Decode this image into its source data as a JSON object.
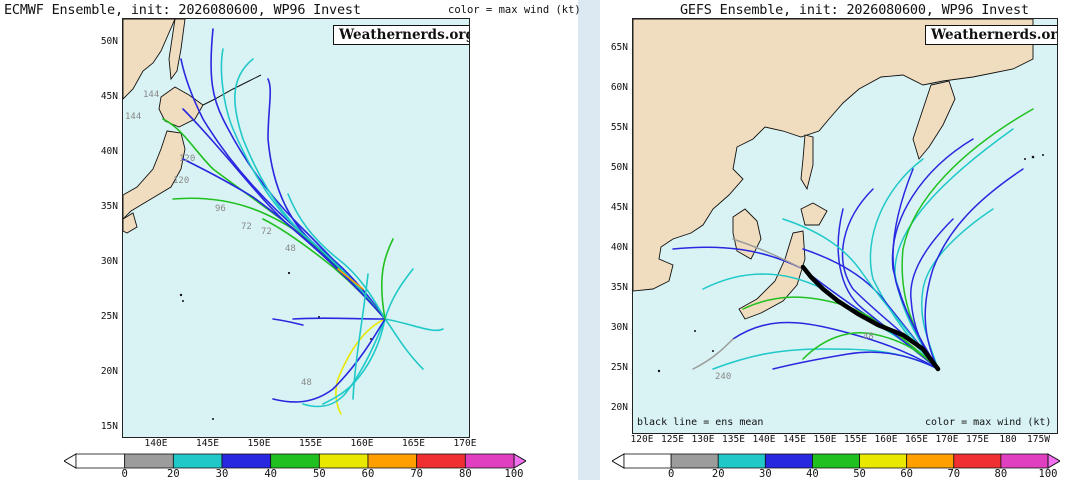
{
  "left": {
    "title": "ECMWF Ensemble, init: 2026080600, WP96 Invest",
    "legend_note": "color = max wind (kt)",
    "brand": "Weathernerds.org",
    "lat_labels": [
      "50N",
      "45N",
      "40N",
      "35N",
      "30N",
      "25N",
      "20N",
      "15N"
    ],
    "lon_labels": [
      "140E",
      "145E",
      "150E",
      "155E",
      "160E",
      "165E",
      "170E"
    ],
    "map_annotations": [
      "144",
      "144",
      "120",
      "120",
      "96",
      "72",
      "72",
      "48",
      "48"
    ],
    "colorbar_labels": [
      "0",
      "20",
      "30",
      "40",
      "50",
      "60",
      "70",
      "80",
      "100"
    ]
  },
  "right": {
    "title": "GEFS Ensemble, init: 2026080600, WP96 Invest",
    "brand": "Weathernerds.org",
    "lat_labels": [
      "65N",
      "60N",
      "55N",
      "50N",
      "45N",
      "40N",
      "35N",
      "30N",
      "25N",
      "20N"
    ],
    "lon_labels": [
      "120E",
      "125E",
      "130E",
      "135E",
      "140E",
      "145E",
      "150E",
      "155E",
      "160E",
      "165E",
      "170E",
      "175E",
      "180",
      "175W"
    ],
    "map_annotations": [
      "240",
      "48"
    ],
    "note_left": "black line = ens mean",
    "note_right": "color = max wind (kt)",
    "colorbar_labels": [
      "0",
      "20",
      "30",
      "40",
      "50",
      "60",
      "70",
      "80",
      "100"
    ]
  },
  "colorbar": {
    "bins": [
      "#ffffff",
      "#9c9c9c",
      "#20c8c8",
      "#2828e0",
      "#20c020",
      "#e8e800",
      "#ffa000",
      "#f03030",
      "#e040c0"
    ]
  },
  "colors": {
    "ocean": "#d9f3f4",
    "land": "#f0dcbe",
    "mean_track": "#000000"
  }
}
